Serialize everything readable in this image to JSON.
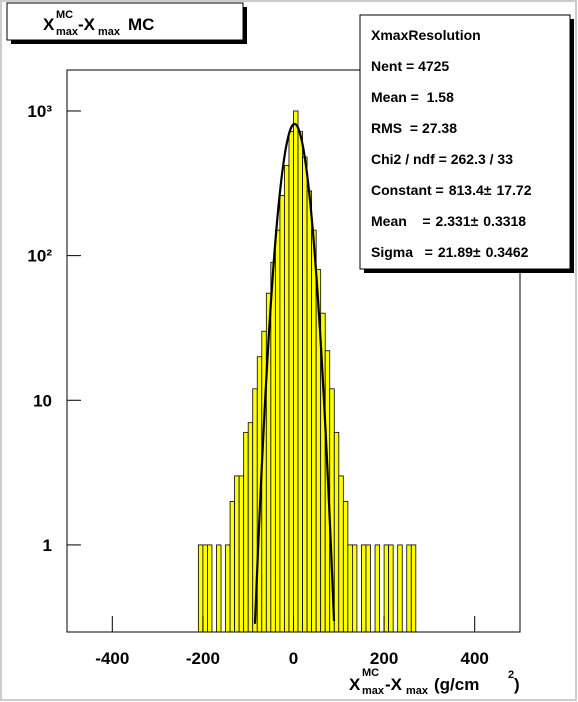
{
  "chart_data": {
    "type": "histogram",
    "title": [
      "X",
      "MC",
      "max",
      "-X",
      "max",
      "MC"
    ],
    "x_label": [
      "X",
      "MC",
      "max",
      "-X",
      "max",
      "(g/cm",
      "2",
      ")"
    ],
    "bins": [
      -220,
      -210,
      -200,
      -190,
      -180,
      -170,
      -160,
      -150,
      -140,
      -130,
      -120,
      -110,
      -100,
      -90,
      -80,
      -70,
      -60,
      -50,
      -40,
      -30,
      -20,
      -10,
      0,
      10,
      20,
      30,
      40,
      50,
      60,
      70,
      80,
      90,
      100,
      110,
      120,
      130,
      140,
      150,
      160,
      170,
      180,
      190,
      200,
      210,
      220,
      230,
      240,
      250,
      260,
      270
    ],
    "values": [
      0,
      1,
      1,
      1,
      0,
      1,
      0,
      1,
      2,
      3,
      3,
      6,
      7,
      12,
      20,
      30,
      55,
      90,
      150,
      260,
      420,
      720,
      1000,
      720,
      480,
      280,
      150,
      80,
      40,
      22,
      12,
      6,
      3,
      2,
      1,
      1,
      0,
      1,
      1,
      0,
      1,
      0,
      1,
      1,
      0,
      1,
      0,
      1,
      1
    ],
    "color": "#ffff00",
    "xlim": [
      -500,
      500
    ],
    "ylim": [
      0.25,
      1920
    ],
    "log_y": true,
    "xticks": [
      -400,
      -200,
      0,
      200,
      400
    ],
    "yticks": [
      1,
      10,
      {
        "value": 100,
        "label": "10²"
      },
      {
        "value": 1000,
        "label": "10³"
      }
    ],
    "stats": {
      "title": "XmaxResolution",
      "rows": [
        "Nent = 4725",
        "Mean =  1.58",
        "RMS  = 27.38",
        "Chi2 / ndf = 262.3 / 33"
      ],
      "fit_separator": "±",
      "fit": [
        {
          "label": "Constant =",
          "value": 813.4,
          "error": 17.72
        },
        {
          "label": "Mean    =",
          "value": 2.331,
          "error": 0.3318
        },
        {
          "label": "Sigma   =",
          "value": 21.89,
          "error": 0.3462
        }
      ]
    }
  }
}
